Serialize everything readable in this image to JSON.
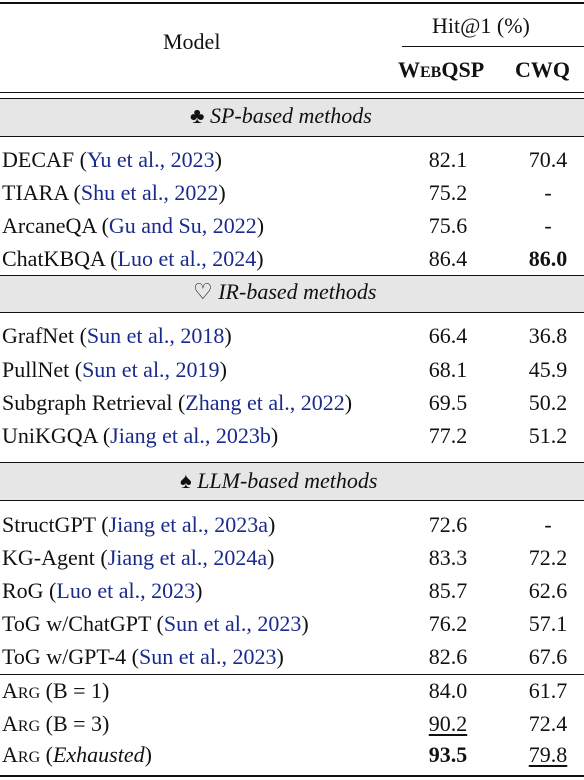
{
  "header": {
    "model_label": "Model",
    "metric_label": "Hit@1 (%)",
    "col1": {
      "first": "W",
      "rest": "EB",
      "q": "QSP"
    },
    "col2": "CWQ"
  },
  "sections": [
    {
      "symbol": "♣",
      "title": "SP-based methods",
      "rows": [
        {
          "name": "DECAF (",
          "cite": "Yu et al., 2023",
          "close": ")",
          "webqsp": "82.1",
          "cwq": "70.4"
        },
        {
          "name": "TIARA (",
          "cite": "Shu et al., 2022",
          "close": ")",
          "webqsp": "75.2",
          "cwq": "-"
        },
        {
          "name": "ArcaneQA (",
          "cite": "Gu and Su, 2022",
          "close": ")",
          "webqsp": "75.6",
          "cwq": "-"
        },
        {
          "name": "ChatKBQA (",
          "cite": "Luo et al., 2024",
          "close": ")",
          "webqsp": "86.4",
          "cwq": "86.0"
        }
      ]
    },
    {
      "symbol": "♡",
      "title": "IR-based methods",
      "rows": [
        {
          "name": "GrafNet (",
          "cite": "Sun et al., 2018",
          "close": ")",
          "webqsp": "66.4",
          "cwq": "36.8"
        },
        {
          "name": "PullNet (",
          "cite": "Sun et al., 2019",
          "close": ")",
          "webqsp": "68.1",
          "cwq": "45.9"
        },
        {
          "name": "Subgraph Retrieval (",
          "cite": "Zhang et al., 2022",
          "close": ")",
          "webqsp": "69.5",
          "cwq": "50.2"
        },
        {
          "name": "UniKGQA (",
          "cite": "Jiang et al., 2023b",
          "close": ")",
          "webqsp": "77.2",
          "cwq": "51.2"
        }
      ]
    },
    {
      "symbol": "♠",
      "title": "LLM-based methods",
      "rows": [
        {
          "name": "StructGPT (",
          "cite": "Jiang et al., 2023a",
          "close": ")",
          "webqsp": "72.6",
          "cwq": "-"
        },
        {
          "name": "KG-Agent (",
          "cite": "Jiang et al., 2024a",
          "close": ")",
          "webqsp": "83.3",
          "cwq": "72.2"
        },
        {
          "name": "RoG (",
          "cite": "Luo et al., 2023",
          "close": ")",
          "webqsp": "85.7",
          "cwq": "62.6"
        },
        {
          "name": "ToG w/ChatGPT (",
          "cite": "Sun et al., 2023",
          "close": ")",
          "webqsp": "76.2",
          "cwq": "57.1"
        },
        {
          "name": "ToG w/GPT-4 (",
          "cite": "Sun et al., 2023",
          "close": ")",
          "webqsp": "82.6",
          "cwq": "67.6"
        }
      ]
    }
  ],
  "arg_rows": [
    {
      "a": "A",
      "rg": "RG",
      "cond": "(B = 1)",
      "webqsp": "84.0",
      "cwq": "61.7"
    },
    {
      "a": "A",
      "rg": "RG",
      "cond": "(B = 3)",
      "webqsp": "90.2",
      "cwq": "72.4"
    },
    {
      "a": "A",
      "rg": "RG",
      "cond_open": "(",
      "cond_italic": "Exhausted",
      "cond_close": ")",
      "webqsp": "93.5",
      "cwq": "79.8"
    }
  ]
}
